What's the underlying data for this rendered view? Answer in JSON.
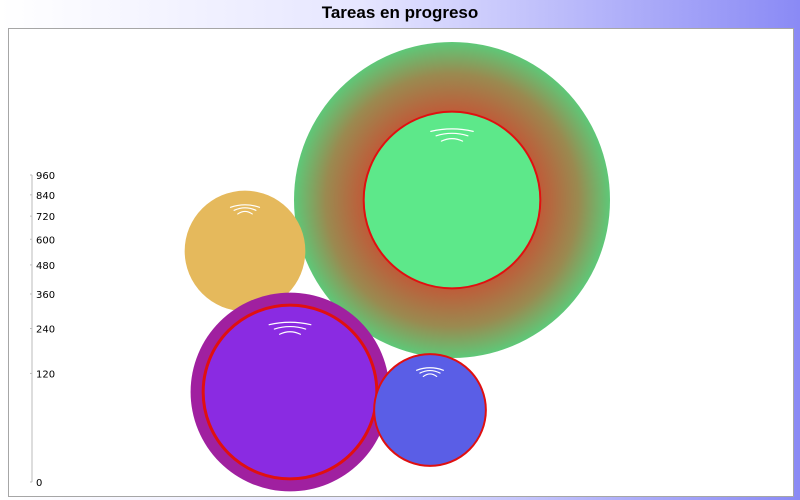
{
  "chart_data": {
    "type": "bubble",
    "title": "Tareas en progreso",
    "scale": {
      "ticks": [
        0,
        120,
        240,
        360,
        480,
        600,
        720,
        840,
        960
      ],
      "max": 960
    },
    "bubbles": [
      {
        "value": 960,
        "inner_value": 300,
        "color": "#5de88a",
        "ring_color": "#c05a38",
        "outline": "#e01010",
        "style": "radial"
      },
      {
        "value": 140,
        "color": "#e5b95c",
        "style": "plain"
      },
      {
        "value": 380,
        "inner_value": 290,
        "color": "#8a2be2",
        "ring_color": "#a020a0",
        "outline": "#e01010",
        "style": "ringed"
      },
      {
        "value": 120,
        "color": "#5a5ee6",
        "outline": "#e01010",
        "style": "outlined"
      }
    ]
  }
}
